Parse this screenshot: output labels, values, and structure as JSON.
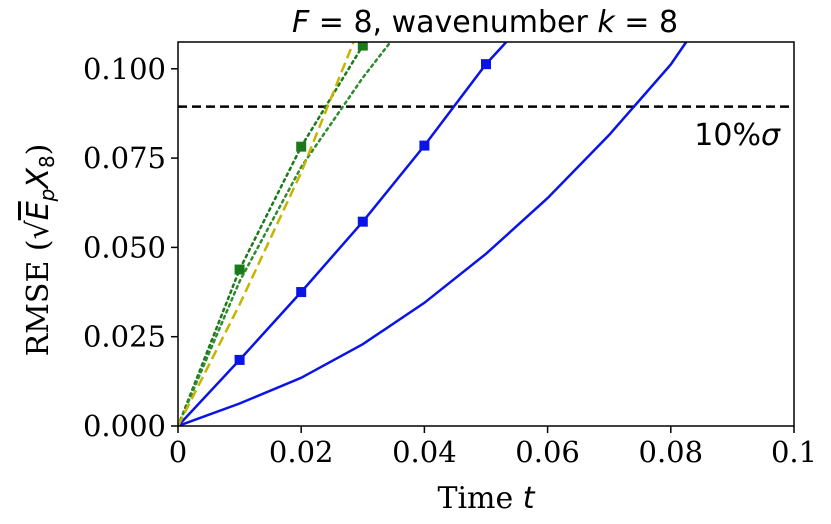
{
  "chart_data": {
    "type": "line",
    "title": {
      "prefix": "F",
      "middle": " = 8, wavenumber ",
      "var": "k",
      "suffix": " = 8"
    },
    "xlabel": {
      "text": "Time ",
      "var": "t"
    },
    "ylabel": {
      "prefix": "RMSE (",
      "sqrt_body": "E",
      "sqrt_sub": "p",
      "hat_var": "X",
      "hat_sub": "8",
      "suffix": ")"
    },
    "xlim": [
      0,
      0.1
    ],
    "ylim": [
      0,
      0.1075
    ],
    "xticks": [
      0,
      0.02,
      0.04,
      0.06,
      0.08,
      0.1
    ],
    "xtick_labels": [
      "0",
      "0.02",
      "0.04",
      "0.06",
      "0.08",
      "0.1"
    ],
    "yticks": [
      0,
      0.025,
      0.05,
      0.075,
      0.1
    ],
    "ytick_labels": [
      "0.000",
      "0.025",
      "0.050",
      "0.075",
      "0.100"
    ],
    "threshold": {
      "value": 0.0894,
      "label": "10%",
      "label_var": "σ",
      "style": "dashed",
      "color": "#000000"
    },
    "series": [
      {
        "name": "blue-solid",
        "color": "#0a14e6",
        "style": "solid",
        "marker": "none",
        "x": [
          0,
          0.01,
          0.02,
          0.03,
          0.04,
          0.05,
          0.06,
          0.07,
          0.08,
          0.0825
        ],
        "y": [
          0,
          0.0063,
          0.0135,
          0.0229,
          0.0345,
          0.0482,
          0.0638,
          0.0815,
          0.1012,
          0.1075
        ]
      },
      {
        "name": "blue-square",
        "color": "#0a14e6",
        "style": "solid",
        "marker": "square",
        "x": [
          0,
          0.01,
          0.02,
          0.03,
          0.04,
          0.05,
          0.0533
        ],
        "y": [
          0,
          0.0185,
          0.0375,
          0.0572,
          0.0785,
          0.1013,
          0.1075
        ]
      },
      {
        "name": "green-square-dotted",
        "color": "#1a7a1a",
        "style": "dotted",
        "marker": "square",
        "x": [
          0,
          0.01,
          0.02,
          0.03
        ],
        "y": [
          0,
          0.0438,
          0.0782,
          0.1065
        ]
      },
      {
        "name": "green-dotted",
        "color": "#2e8b2e",
        "style": "dotted",
        "marker": "none",
        "x": [
          0,
          0.01,
          0.02,
          0.03,
          0.0345
        ],
        "y": [
          0,
          0.0405,
          0.0725,
          0.0975,
          0.1075
        ]
      },
      {
        "name": "yellow-dashed",
        "color": "#c8b400",
        "style": "dashed",
        "marker": "none",
        "x": [
          0,
          0.01,
          0.02,
          0.0285
        ],
        "y": [
          0,
          0.034,
          0.071,
          0.1075
        ]
      }
    ]
  }
}
